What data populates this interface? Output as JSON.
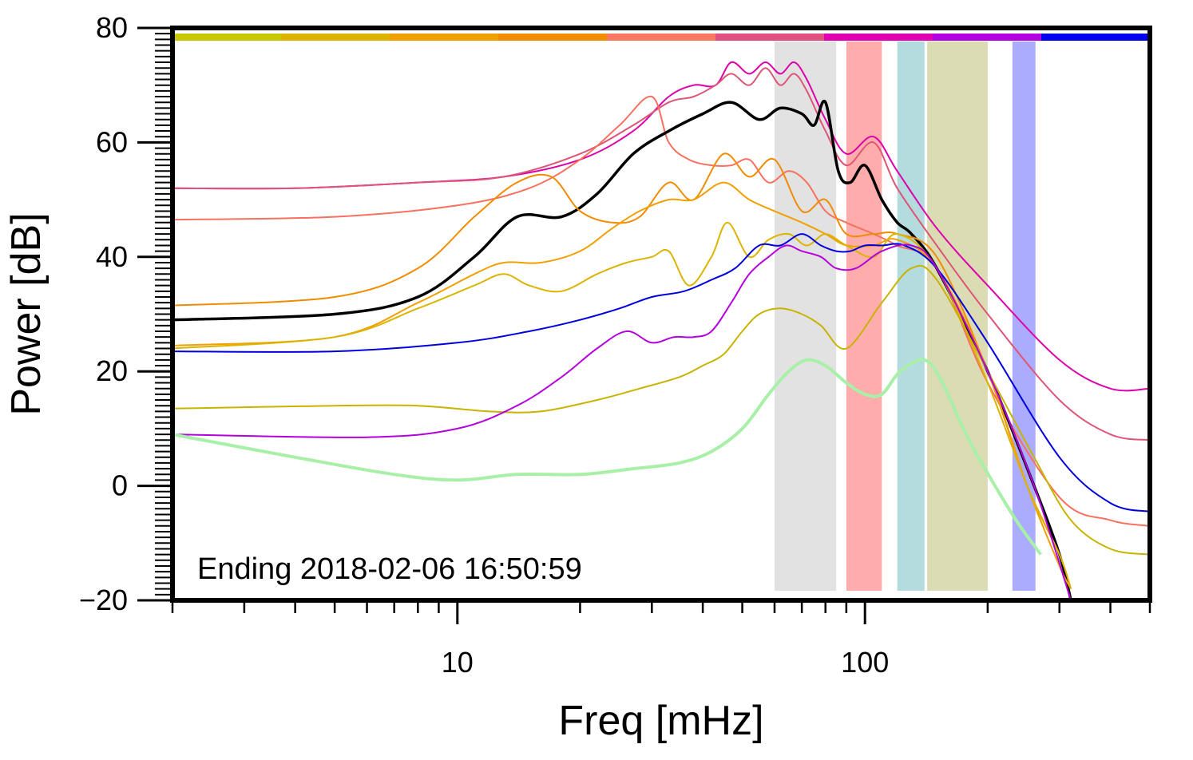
{
  "chart_data": {
    "type": "line",
    "title": "",
    "xlabel": "Freq [mHz]",
    "ylabel": "Power [dB]",
    "xscale": "log",
    "xlim": [
      2,
      500
    ],
    "ylim": [
      -20,
      80
    ],
    "x_ticks": [
      10,
      100
    ],
    "x_tick_labels": [
      "10",
      "100"
    ],
    "y_ticks": [
      -20,
      0,
      20,
      40,
      60,
      80
    ],
    "y_tick_labels": [
      "−20",
      "0",
      "20",
      "40",
      "60",
      "80"
    ],
    "grid": false,
    "annotation": "Ending 2018-02-06 16:50:59",
    "color_bar": [
      "#c8c800",
      "#dcb400",
      "#f0a000",
      "#f08c00",
      "#f87864",
      "#e05080",
      "#e000b4",
      "#b400e0",
      "#0000f0"
    ],
    "bands": [
      {
        "from": 60,
        "to": 85,
        "color": "#d3d3d3"
      },
      {
        "from": 90,
        "to": 110,
        "color": "#ff8080"
      },
      {
        "from": 120,
        "to": 140,
        "color": "#8cc8cc"
      },
      {
        "from": 142,
        "to": 200,
        "color": "#c8c88c"
      },
      {
        "from": 230,
        "to": 262,
        "color": "#8080ff"
      }
    ],
    "series": [
      {
        "name": "magenta-1",
        "color": "#dd00aa",
        "width": 2,
        "x": [
          2,
          4,
          8,
          13,
          20,
          27,
          33,
          38,
          43,
          47,
          52,
          57,
          62,
          67,
          72,
          80,
          90,
          105,
          120,
          150,
          200,
          300,
          400,
          500
        ],
        "y": [
          52,
          52,
          53,
          54,
          57,
          62,
          68,
          70,
          70,
          74,
          72,
          74,
          72,
          74,
          71,
          64,
          58,
          61,
          55,
          45,
          35,
          22,
          17,
          17
        ]
      },
      {
        "name": "pink-1",
        "color": "#dd5577",
        "width": 2,
        "x": [
          2,
          4,
          8,
          13,
          20,
          27,
          33,
          38,
          43,
          47,
          52,
          57,
          62,
          67,
          72,
          80,
          90,
          105,
          120,
          150,
          200,
          300,
          400,
          500
        ],
        "y": [
          52,
          52,
          53,
          54,
          58,
          63,
          67,
          68,
          70,
          72,
          70,
          73,
          70,
          72,
          69,
          62,
          56,
          60,
          52,
          42,
          30,
          15,
          9,
          8
        ]
      },
      {
        "name": "salmon-1",
        "color": "#f87060",
        "width": 2,
        "x": [
          2,
          5,
          10,
          15,
          20,
          25,
          30,
          33,
          37,
          42,
          47,
          52,
          58,
          65,
          72,
          80,
          90,
          105,
          120,
          150,
          200,
          300,
          400,
          500
        ],
        "y": [
          46.5,
          47,
          49,
          52,
          57,
          63,
          68,
          60,
          57,
          56,
          56,
          57,
          53,
          55,
          53,
          48,
          46,
          44,
          42,
          38,
          18,
          -2,
          -6,
          -7
        ]
      },
      {
        "name": "black-mean",
        "color": "#000000",
        "width": 3.5,
        "x": [
          2,
          5,
          8,
          11,
          14,
          18,
          22,
          27,
          33,
          40,
          47,
          55,
          62,
          70,
          75,
          80,
          86,
          92,
          100,
          110,
          120,
          130,
          150,
          200,
          260,
          300,
          320
        ],
        "y": [
          29,
          30,
          33,
          40,
          47,
          47,
          51,
          58,
          62,
          65,
          67,
          64,
          66,
          65,
          63,
          67,
          55,
          53,
          56,
          50,
          46,
          44,
          38,
          20,
          0,
          -12,
          -20
        ]
      },
      {
        "name": "orange-1",
        "color": "#f08c00",
        "width": 2,
        "x": [
          2,
          5,
          8,
          11,
          14,
          17,
          20,
          24,
          28,
          33,
          38,
          45,
          52,
          60,
          70,
          80,
          90,
          105,
          120,
          150,
          200,
          250,
          300,
          320
        ],
        "y": [
          31.5,
          33,
          38,
          47,
          53,
          54,
          48,
          46,
          47,
          53,
          50,
          58,
          54,
          57,
          48,
          50,
          44,
          44,
          44,
          40,
          20,
          0,
          -12,
          -18
        ]
      },
      {
        "name": "orange-2",
        "color": "#f0a000",
        "width": 2,
        "x": [
          2,
          5,
          8,
          11,
          13,
          16,
          20,
          24,
          28,
          33,
          38,
          45,
          52,
          60,
          70,
          80,
          90,
          105,
          120,
          150,
          200,
          250,
          300,
          320
        ],
        "y": [
          24.5,
          26,
          32,
          37,
          39,
          39,
          41,
          45,
          48,
          50,
          50,
          53,
          50,
          48,
          46,
          44,
          42,
          42,
          43,
          38,
          20,
          0,
          -14,
          -18
        ]
      },
      {
        "name": "amber-1",
        "color": "#dcb400",
        "width": 2,
        "x": [
          2,
          5,
          8,
          11,
          13,
          15,
          18,
          22,
          26,
          30,
          33,
          37,
          42,
          46,
          52,
          58,
          65,
          72,
          80,
          90,
          105,
          120,
          150,
          200,
          250,
          300,
          320
        ],
        "y": [
          24,
          26,
          31,
          35,
          37,
          35,
          34,
          37,
          39,
          40,
          41,
          35,
          40,
          46,
          40,
          43,
          44,
          42,
          44,
          42,
          40,
          44,
          38,
          18,
          0,
          -12,
          -18
        ]
      },
      {
        "name": "blue-1",
        "color": "#0000dd",
        "width": 2,
        "x": [
          2,
          5,
          10,
          15,
          20,
          25,
          30,
          36,
          42,
          48,
          55,
          62,
          70,
          78,
          85,
          92,
          100,
          110,
          125,
          150,
          200,
          300,
          400,
          500
        ],
        "y": [
          23.5,
          23.5,
          25,
          27,
          29,
          31,
          33,
          34,
          36,
          38,
          42,
          42,
          44,
          42,
          41,
          41,
          42,
          42,
          42,
          38,
          25,
          5,
          -3,
          -4.5
        ]
      },
      {
        "name": "yellow-1",
        "color": "#c8b400",
        "width": 2,
        "x": [
          2,
          5,
          8,
          12,
          16,
          22,
          28,
          35,
          40,
          45,
          50,
          55,
          62,
          70,
          78,
          90,
          110,
          130,
          150,
          200,
          260,
          320,
          400,
          500
        ],
        "y": [
          13.5,
          14,
          14,
          13,
          13,
          15,
          17,
          19,
          21,
          23,
          27,
          30,
          31,
          30,
          28,
          24,
          32,
          38,
          36,
          20,
          5,
          -6,
          -11,
          -12
        ]
      },
      {
        "name": "purple-1",
        "color": "#b400dd",
        "width": 2,
        "x": [
          2,
          6,
          10,
          14,
          18,
          22,
          26,
          30,
          34,
          38,
          42,
          47,
          52,
          58,
          64,
          70,
          78,
          85,
          95,
          110,
          130,
          150,
          200,
          260,
          320
        ],
        "y": [
          9,
          8.5,
          10,
          14,
          19,
          24,
          27,
          25,
          26,
          26,
          27,
          32,
          37,
          40,
          42,
          41,
          40,
          38,
          38,
          41,
          42,
          38,
          20,
          0,
          -20
        ]
      },
      {
        "name": "green-ref",
        "color": "#a8f0a8",
        "width": 4,
        "x": [
          2,
          4,
          7,
          10,
          14,
          20,
          27,
          35,
          42,
          50,
          58,
          65,
          72,
          80,
          90,
          100,
          110,
          122,
          140,
          155,
          180,
          230,
          270
        ],
        "y": [
          9,
          5,
          2,
          1,
          2,
          2,
          3,
          4,
          6,
          10,
          16,
          20,
          22,
          21,
          18,
          16,
          16,
          20,
          22,
          18,
          8,
          -5,
          -12
        ]
      }
    ]
  }
}
